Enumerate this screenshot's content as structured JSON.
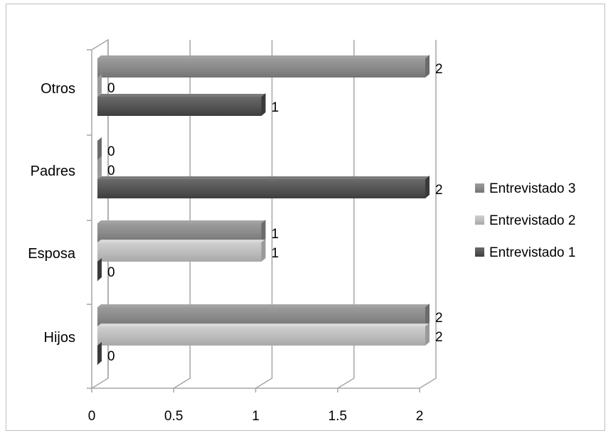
{
  "chart_data": {
    "type": "bar",
    "orientation": "horizontal",
    "style": "3d-clustered",
    "categories": [
      "Hijos",
      "Esposa",
      "Padres",
      "Otros"
    ],
    "series": [
      {
        "name": "Entrevistado 1",
        "color": "#5a5a5a",
        "values": [
          0,
          0,
          2,
          1
        ]
      },
      {
        "name": "Entrevistado 2",
        "color": "#bdbdbd",
        "values": [
          2,
          1,
          0,
          0
        ]
      },
      {
        "name": "Entrevistado 3",
        "color": "#8c8c8c",
        "values": [
          2,
          1,
          0,
          2
        ]
      }
    ],
    "xlim": [
      0,
      2
    ],
    "xticks": [
      "0",
      "0.5",
      "1",
      "1.5",
      "2"
    ],
    "grid": true,
    "data_labels": true,
    "legend": "right",
    "legend_order": [
      "Entrevistado 3",
      "Entrevistado 2",
      "Entrevistado 1"
    ]
  }
}
